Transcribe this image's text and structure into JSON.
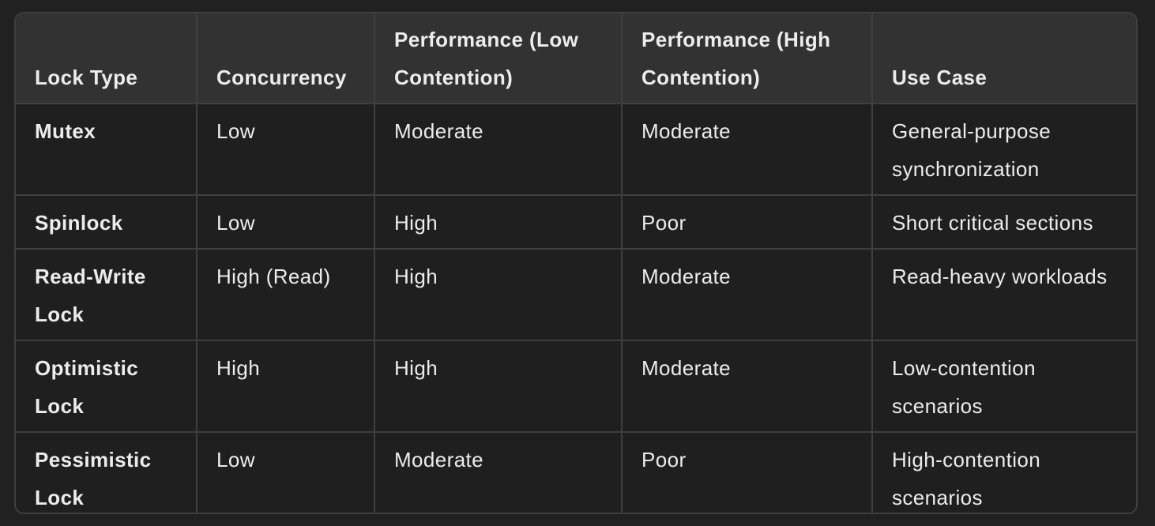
{
  "table": {
    "headers": [
      "Lock Type",
      "Concurrency",
      "Performance (Low Contention)",
      "Performance (High Contention)",
      "Use Case"
    ],
    "rows": [
      [
        "Mutex",
        "Low",
        "Moderate",
        "Moderate",
        "General-purpose synchronization"
      ],
      [
        "Spinlock",
        "Low",
        "High",
        "Poor",
        "Short critical sections"
      ],
      [
        "Read-Write Lock",
        "High (Read)",
        "High",
        "Moderate",
        "Read-heavy workloads"
      ],
      [
        "Optimistic Lock",
        "High",
        "High",
        "Moderate",
        "Low-contention scenarios"
      ],
      [
        "Pessimistic Lock",
        "Low",
        "Moderate",
        "Poor",
        "High-contention scenarios"
      ]
    ]
  }
}
